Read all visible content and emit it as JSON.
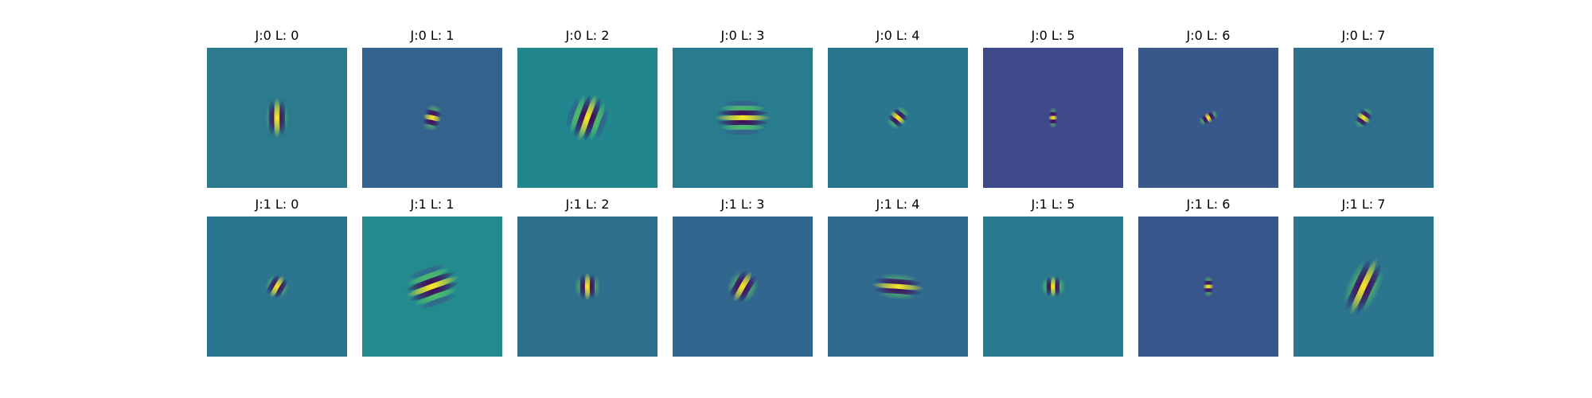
{
  "figure": {
    "rows": [
      {
        "panels": [
          {
            "title": "J:0 L: 0",
            "background": "#2b7a8e",
            "filter": {
              "orientation_deg": 90,
              "sigma_major": 26,
              "sigma_minor": 5,
              "wavelength": 10,
              "stripes": 3
            }
          },
          {
            "title": "J:0 L: 1",
            "background": "#33638d",
            "filter": {
              "orientation_deg": -12,
              "sigma_major": 12,
              "sigma_minor": 7,
              "wavelength": 9,
              "stripes": 3
            }
          },
          {
            "title": "J:0 L: 2",
            "background": "#22868e",
            "filter": {
              "orientation_deg": 70,
              "sigma_major": 32,
              "sigma_minor": 9,
              "wavelength": 10,
              "stripes": 5
            }
          },
          {
            "title": "J:0 L: 3",
            "background": "#287c8e",
            "filter": {
              "orientation_deg": 0,
              "sigma_major": 36,
              "sigma_minor": 8,
              "wavelength": 9,
              "stripes": 5
            }
          },
          {
            "title": "J:0 L: 4",
            "background": "#2a768e",
            "filter": {
              "orientation_deg": -40,
              "sigma_major": 12,
              "sigma_minor": 6,
              "wavelength": 8,
              "stripes": 3
            }
          },
          {
            "title": "J:0 L: 5",
            "background": "#3f4a8a",
            "filter": {
              "orientation_deg": 0,
              "sigma_major": 6,
              "sigma_minor": 5,
              "wavelength": 7,
              "stripes": 3
            }
          },
          {
            "title": "J:0 L: 6",
            "background": "#38588c",
            "filter": {
              "orientation_deg": -60,
              "sigma_major": 7,
              "sigma_minor": 5,
              "wavelength": 7,
              "stripes": 3
            }
          },
          {
            "title": "J:0 L: 7",
            "background": "#2d708e",
            "filter": {
              "orientation_deg": -35,
              "sigma_major": 10,
              "sigma_minor": 5,
              "wavelength": 8,
              "stripes": 3
            }
          }
        ]
      },
      {
        "panels": [
          {
            "title": "J:1 L: 0",
            "background": "#2b758e",
            "filter": {
              "orientation_deg": 60,
              "sigma_major": 16,
              "sigma_minor": 5,
              "wavelength": 9,
              "stripes": 3
            }
          },
          {
            "title": "J:1 L: 1",
            "background": "#238a8d",
            "filter": {
              "orientation_deg": 20,
              "sigma_major": 36,
              "sigma_minor": 9,
              "wavelength": 10,
              "stripes": 5
            }
          },
          {
            "title": "J:1 L: 2",
            "background": "#2d708e",
            "filter": {
              "orientation_deg": 90,
              "sigma_major": 18,
              "sigma_minor": 6,
              "wavelength": 9,
              "stripes": 3
            }
          },
          {
            "title": "J:1 L: 3",
            "background": "#31668e",
            "filter": {
              "orientation_deg": 60,
              "sigma_major": 22,
              "sigma_minor": 7,
              "wavelength": 10,
              "stripes": 3
            }
          },
          {
            "title": "J:1 L: 4",
            "background": "#306a8e",
            "filter": {
              "orientation_deg": -4,
              "sigma_major": 34,
              "sigma_minor": 6,
              "wavelength": 9,
              "stripes": 3
            }
          },
          {
            "title": "J:1 L: 5",
            "background": "#297a8e",
            "filter": {
              "orientation_deg": 90,
              "sigma_major": 14,
              "sigma_minor": 6,
              "wavelength": 8,
              "stripes": 3
            }
          },
          {
            "title": "J:1 L: 6",
            "background": "#39568c",
            "filter": {
              "orientation_deg": 0,
              "sigma_major": 7,
              "sigma_minor": 5,
              "wavelength": 7,
              "stripes": 3
            }
          },
          {
            "title": "J:1 L: 7",
            "background": "#2b758e",
            "filter": {
              "orientation_deg": 65,
              "sigma_major": 40,
              "sigma_minor": 8,
              "wavelength": 11,
              "stripes": 3
            }
          }
        ]
      }
    ],
    "colormap": {
      "dark": "#440154",
      "mid_dark": "#3b528b",
      "mid": "#21908d",
      "mid_light": "#5dc963",
      "light": "#fde725"
    }
  }
}
